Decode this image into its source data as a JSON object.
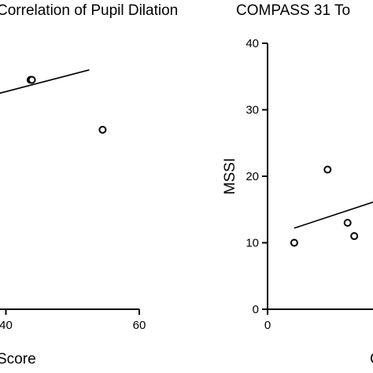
{
  "chart_data": [
    {
      "type": "scatter",
      "title": "Correlation of Pupil Dilation",
      "xlabel": "Score",
      "ylabel": "",
      "xlim": [
        20,
        60
      ],
      "ylim": [
        0,
        40
      ],
      "x_ticks": [
        "40",
        "60"
      ],
      "y_ticks": [],
      "series": [
        {
          "x": [
            43.7,
            43.9,
            54.5
          ],
          "y": [
            34.5,
            34.5,
            27.0
          ]
        }
      ],
      "fit_line": {
        "x": [
          20,
          52.5
        ],
        "y": [
          27.5,
          36.0
        ]
      }
    },
    {
      "type": "scatter",
      "title": "COMPASS 31 To",
      "xlabel": "C",
      "ylabel": "MSSI",
      "xlim": [
        0,
        40
      ],
      "ylim": [
        0,
        40
      ],
      "x_ticks": [
        "0"
      ],
      "y_ticks": [
        "0",
        "10",
        "20",
        "30",
        "40"
      ],
      "series": [
        {
          "x": [
            4.0,
            9.0,
            12.0,
            13.0
          ],
          "y": [
            10.0,
            21.0,
            13.0,
            11.0
          ]
        }
      ],
      "fit_line": {
        "x": [
          4.0,
          17.0
        ],
        "y": [
          12.2,
          16.5
        ]
      }
    }
  ]
}
